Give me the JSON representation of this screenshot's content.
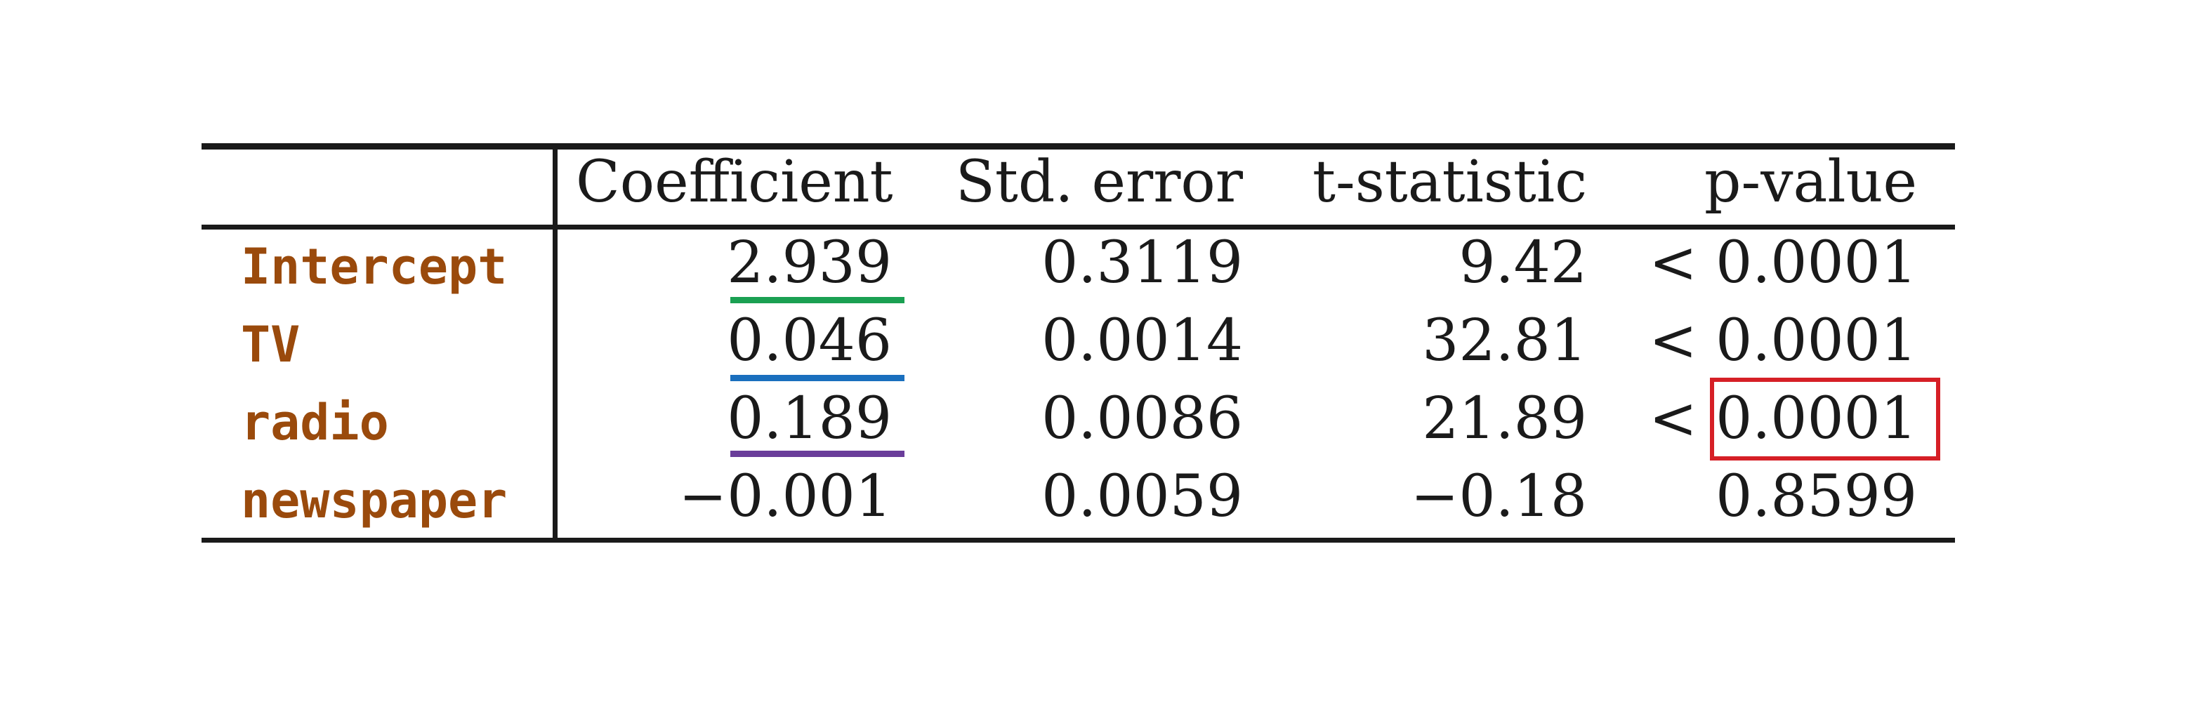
{
  "colors": {
    "rule": "#1a1a1a",
    "row_label": "#9a4a0c",
    "highlight_box": "#d61f26",
    "underline_intercept": "#1aa052",
    "underline_tv": "#1a6fbe",
    "underline_radio": "#6a3d9a"
  },
  "table": {
    "headers": [
      "Coefficient",
      "Std. error",
      "t-statistic",
      "p-value"
    ],
    "rows": [
      {
        "label": "Intercept",
        "coefficient": "2.939",
        "std_error": "0.3119",
        "t_statistic": "9.42",
        "p_value": "< 0.0001"
      },
      {
        "label": "TV",
        "coefficient": "0.046",
        "std_error": "0.0014",
        "t_statistic": "32.81",
        "p_value": "< 0.0001"
      },
      {
        "label": "radio",
        "coefficient": "0.189",
        "std_error": "0.0086",
        "t_statistic": "21.89",
        "p_value": "< 0.0001"
      },
      {
        "label": "newspaper",
        "coefficient": "−0.001",
        "std_error": "0.0059",
        "t_statistic": "−0.18",
        "p_value": "0.8599"
      }
    ]
  }
}
